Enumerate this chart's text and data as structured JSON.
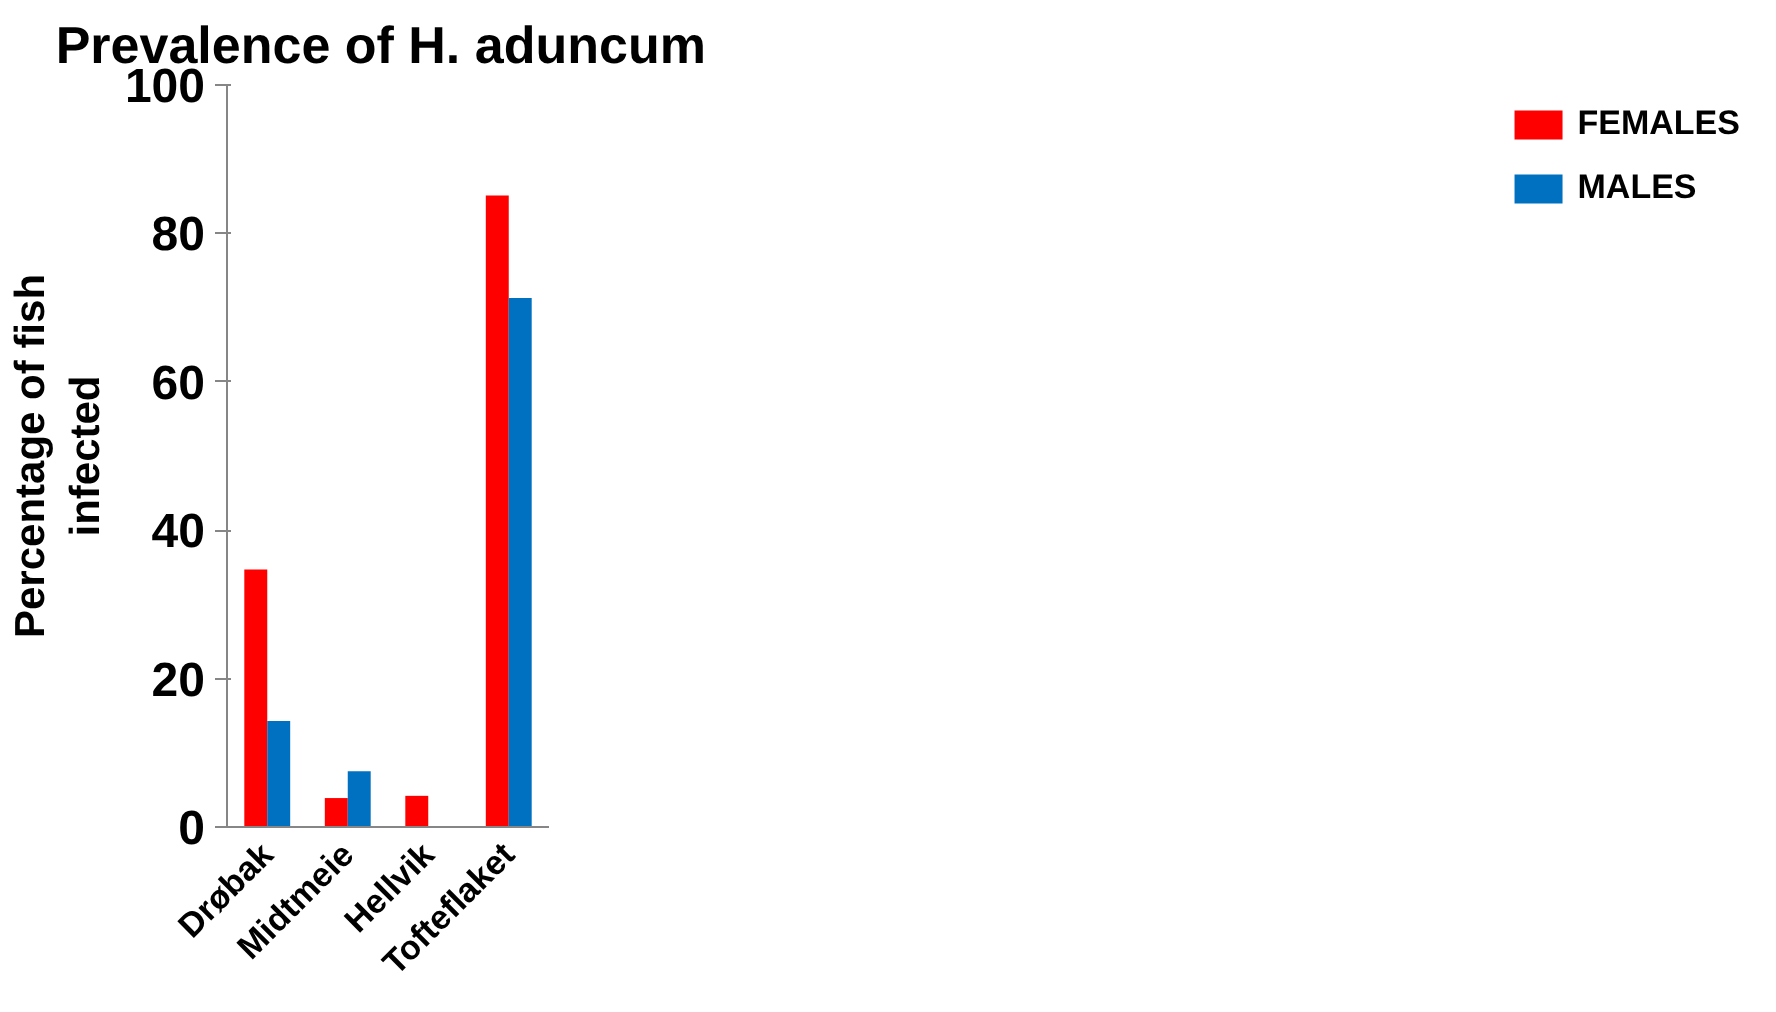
{
  "chart_data": {
    "type": "bar",
    "title": "Prevalence of  H. aduncum",
    "ylabel": "Percentage of fish infected",
    "categories": [
      "Drøbak",
      "Midtmeie",
      "Hellvik",
      "Tofteflaket"
    ],
    "series": [
      {
        "name": "FEMALES",
        "color": "#ff0000",
        "values": [
          34.7,
          3.9,
          4.2,
          85.1
        ]
      },
      {
        "name": "MALES",
        "color": "#0070c0",
        "values": [
          14.3,
          7.5,
          0,
          71.3
        ]
      }
    ],
    "ylim": [
      0,
      100
    ],
    "yticks": [
      0,
      20,
      40,
      60,
      80,
      100
    ],
    "grid": false,
    "legend": "right"
  }
}
